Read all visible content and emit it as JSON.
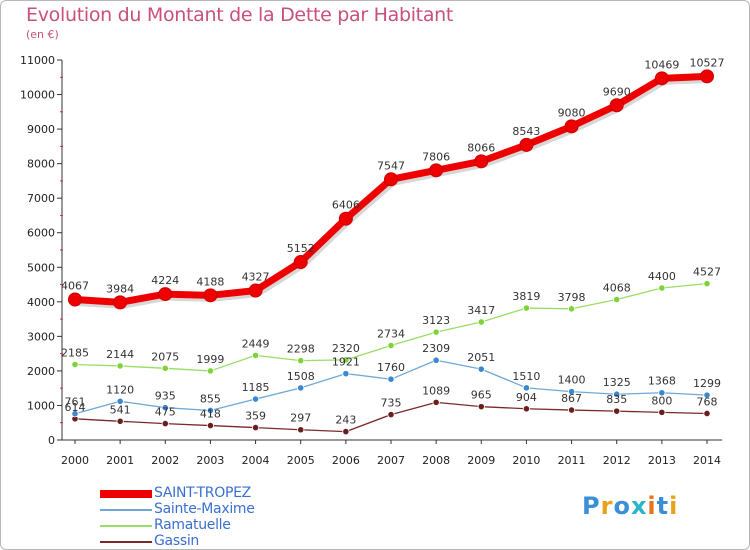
{
  "header": {
    "title": "Evolution du Montant de la Dette par Habitant",
    "unit": "(en €)"
  },
  "logo": {
    "text": "Proxiti",
    "colors": [
      "#3a8fd6",
      "#e8a317",
      "#3a8fd6",
      "#2bb5c9",
      "#e8731a",
      "#3a8fd6",
      "#e8a317"
    ]
  },
  "chart_data": {
    "type": "line",
    "title": "Evolution du Montant de la Dette par Habitant",
    "ylabel": "(en €)",
    "xlabel": "",
    "x": [
      "2000",
      "2001",
      "2002",
      "2003",
      "2004",
      "2005",
      "2006",
      "2007",
      "2008",
      "2009",
      "2010",
      "2011",
      "2012",
      "2013",
      "2014"
    ],
    "ylim": [
      0,
      11000
    ],
    "yticks": [
      0,
      1000,
      2000,
      3000,
      4000,
      5000,
      6000,
      7000,
      8000,
      9000,
      10000,
      11000
    ],
    "grid": false,
    "legend": "bottom-left",
    "series": [
      {
        "name": "SAINT-TROPEZ",
        "color": "#ee0000",
        "values": [
          4067,
          3984,
          4224,
          4188,
          4327,
          5152,
          6406,
          7547,
          7806,
          8066,
          8543,
          9080,
          9690,
          10469,
          10527
        ]
      },
      {
        "name": "Sainte-Maxime",
        "color": "#6fa8d8",
        "values": [
          761,
          1120,
          935,
          855,
          1185,
          1508,
          1921,
          1760,
          2309,
          2051,
          1510,
          1400,
          1325,
          1368,
          1299
        ]
      },
      {
        "name": "Ramatuelle",
        "color": "#99dd66",
        "values": [
          2185,
          2144,
          2075,
          1999,
          2449,
          2298,
          2320,
          2734,
          3123,
          3417,
          3819,
          3798,
          4068,
          4400,
          4527
        ]
      },
      {
        "name": "Gassin",
        "color": "#7a2a2a",
        "values": [
          614,
          541,
          475,
          418,
          359,
          297,
          243,
          735,
          1089,
          965,
          904,
          867,
          835,
          800,
          768
        ]
      }
    ]
  }
}
